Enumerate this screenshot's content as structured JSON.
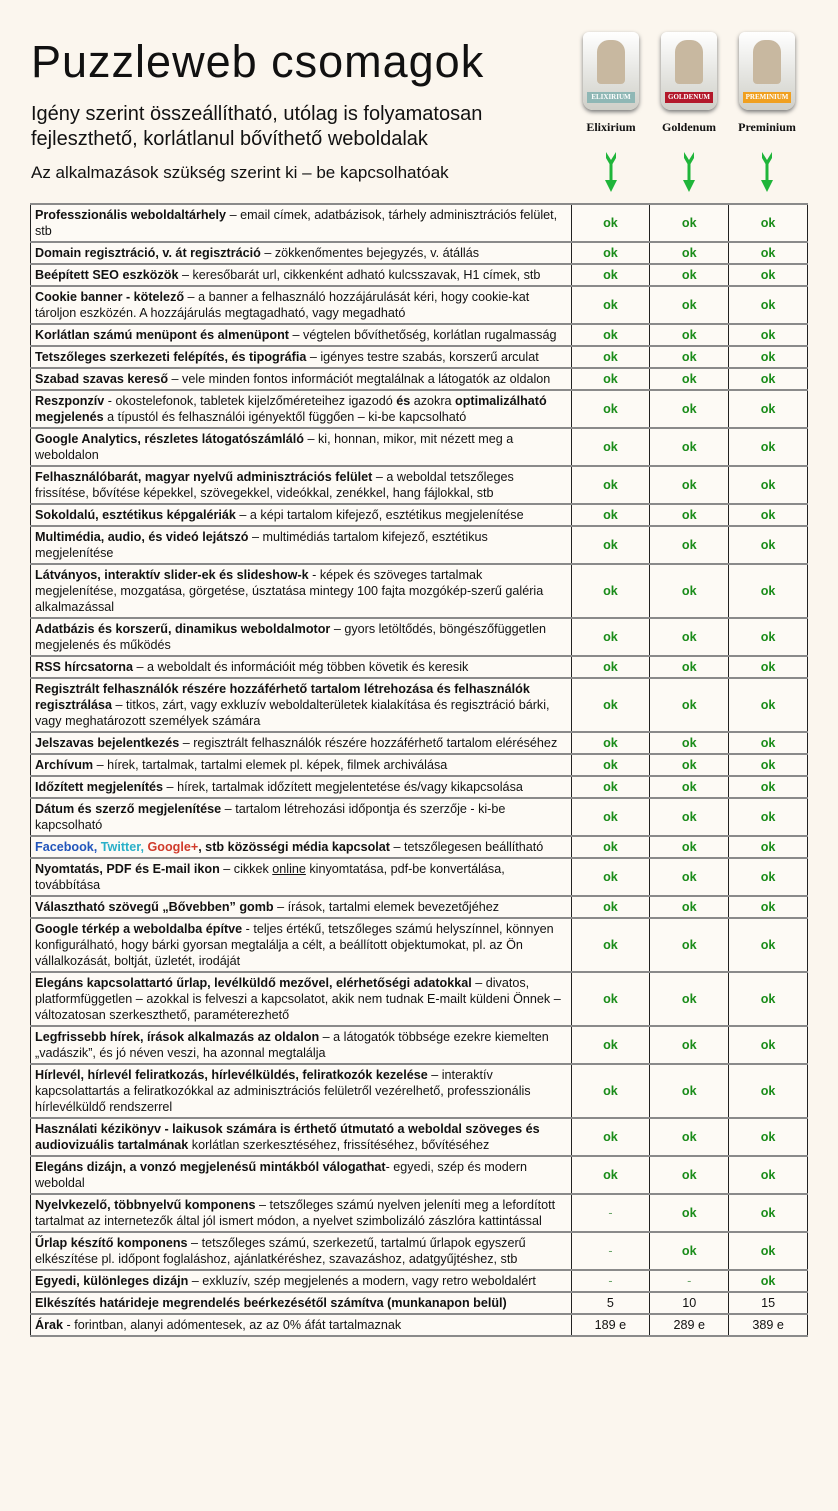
{
  "header": {
    "title": "Puzzleweb csomagok",
    "subtitle_line1": "Igény szerint összeállítható, utólag is folyamatosan",
    "subtitle_line2": "fejleszthető, korlátlanul bővíthető weboldalak",
    "note": "Az alkalmazások szükség szerint ki – be kapcsolhatóak"
  },
  "packages": [
    {
      "name": "Elixirium",
      "band": "ELIXIRIUM",
      "color": "#8fb7b5"
    },
    {
      "name": "Goldenum",
      "band": "GOLDENUM",
      "color": "#b3182a"
    },
    {
      "name": "Preminium",
      "band": "PREMINIUM",
      "color": "#f0a020"
    }
  ],
  "colors": {
    "ok": "#1a8c1a",
    "arrow": "#1fb53a",
    "background": "#fbf6ee"
  },
  "rows": [
    {
      "seg": [
        {
          "t": "Professzionális weboldaltárhely",
          "b": 1
        },
        {
          "t": " – email címek, adatbázisok, tárhely adminisztrációs felület, stb"
        }
      ],
      "v": [
        "ok",
        "ok",
        "ok"
      ]
    },
    {
      "seg": [
        {
          "t": "Domain regisztráció, v. át regisztráció",
          "b": 1
        },
        {
          "t": " – zökkenőmentes bejegyzés, v. átállás"
        }
      ],
      "v": [
        "ok",
        "ok",
        "ok"
      ]
    },
    {
      "seg": [
        {
          "t": "Beépített SEO eszközök",
          "b": 1
        },
        {
          "t": " – keresőbarát url, cikkenként adható kulcsszavak, H1 címek, stb"
        }
      ],
      "v": [
        "ok",
        "ok",
        "ok"
      ]
    },
    {
      "seg": [
        {
          "t": "Cookie banner - kötelező",
          "b": 1
        },
        {
          "t": " – a banner a felhasználó hozzájárulását kéri, hogy cookie-kat tároljon eszközén. A hozzájárulás megtagadható, vagy megadható"
        }
      ],
      "v": [
        "ok",
        "ok",
        "ok"
      ]
    },
    {
      "seg": [
        {
          "t": "Korlátlan számú menüpont és almenüpont",
          "b": 1
        },
        {
          "t": " – végtelen bővíthetőség, korlátlan rugalmasság"
        }
      ],
      "v": [
        "ok",
        "ok",
        "ok"
      ]
    },
    {
      "seg": [
        {
          "t": "Tetszőleges szerkezeti felépítés, és tipográfia",
          "b": 1
        },
        {
          "t": " – igényes testre szabás, korszerű arculat"
        }
      ],
      "v": [
        "ok",
        "ok",
        "ok"
      ]
    },
    {
      "seg": [
        {
          "t": "Szabad szavas kereső",
          "b": 1
        },
        {
          "t": " – vele minden fontos információt megtalálnak a látogatók az oldalon"
        }
      ],
      "v": [
        "ok",
        "ok",
        "ok"
      ]
    },
    {
      "seg": [
        {
          "t": "Reszponzív",
          "b": 1
        },
        {
          "t": " - okostelefonok, tabletek kijelzőméreteihez igazodó "
        },
        {
          "t": "és",
          "b": 1
        },
        {
          "t": " azokra "
        },
        {
          "t": "optimalizálható megjelenés",
          "b": 1
        },
        {
          "t": " a típustól és felhasználói igényektől függően – ki-be kapcsolható"
        }
      ],
      "v": [
        "ok",
        "ok",
        "ok"
      ]
    },
    {
      "seg": [
        {
          "t": "Google Analytics, részletes látogatószámláló",
          "b": 1
        },
        {
          "t": " – ki, honnan, mikor, mit nézett meg a weboldalon"
        }
      ],
      "v": [
        "ok",
        "ok",
        "ok"
      ]
    },
    {
      "seg": [
        {
          "t": "Felhasználóbarát, magyar nyelvű adminisztrációs felület",
          "b": 1
        },
        {
          "t": " – a weboldal tetszőleges frissítése, bővítése képekkel, szövegekkel, videókkal, zenékkel, hang fájlokkal, stb"
        }
      ],
      "v": [
        "ok",
        "ok",
        "ok"
      ]
    },
    {
      "seg": [
        {
          "t": "Sokoldalú, esztétikus képgalériák",
          "b": 1
        },
        {
          "t": " – a képi tartalom kifejező, esztétikus megjelenítése"
        }
      ],
      "v": [
        "ok",
        "ok",
        "ok"
      ]
    },
    {
      "seg": [
        {
          "t": "Multimédia, audio, és videó lejátszó",
          "b": 1
        },
        {
          "t": " – multimédiás tartalom kifejező, esztétikus megjelenítése"
        }
      ],
      "v": [
        "ok",
        "ok",
        "ok"
      ]
    },
    {
      "seg": [
        {
          "t": "Látványos, interaktív slider-ek és slideshow-k",
          "b": 1
        },
        {
          "t": " - képek és szöveges tartalmak megjelenítése, mozgatása, görgetése, úsztatása mintegy 100 fajta mozgókép-szerű galéria alkalmazással"
        }
      ],
      "v": [
        "ok",
        "ok",
        "ok"
      ]
    },
    {
      "seg": [
        {
          "t": "Adatbázis és korszerű, dinamikus weboldalmotor",
          "b": 1
        },
        {
          "t": " –  gyors letöltődés, böngészőfüggetlen megjelenés és működés"
        }
      ],
      "v": [
        "ok",
        "ok",
        "ok"
      ]
    },
    {
      "seg": [
        {
          "t": "RSS hírcsatorna",
          "b": 1
        },
        {
          "t": " – a weboldalt és információit még többen követik és keresik"
        }
      ],
      "v": [
        "ok",
        "ok",
        "ok"
      ]
    },
    {
      "seg": [
        {
          "t": "Regisztrált felhasználók részére hozzáférhető tartalom létrehozása és felhasználók regisztrálása",
          "b": 1
        },
        {
          "t": " – titkos, zárt, vagy exkluzív weboldalterületek kialakítása és regisztráció bárki, vagy meghatározott személyek számára"
        }
      ],
      "v": [
        "ok",
        "ok",
        "ok"
      ]
    },
    {
      "seg": [
        {
          "t": "Jelszavas bejelentkezés",
          "b": 1
        },
        {
          "t": " – regisztrált felhasználók részére hozzáférhető tartalom eléréséhez"
        }
      ],
      "v": [
        "ok",
        "ok",
        "ok"
      ]
    },
    {
      "seg": [
        {
          "t": "Archívum",
          "b": 1
        },
        {
          "t": " – hírek, tartalmak, tartalmi elemek pl. képek, filmek archiválása"
        }
      ],
      "v": [
        "ok",
        "ok",
        "ok"
      ]
    },
    {
      "seg": [
        {
          "t": "Időzített megjelenítés",
          "b": 1
        },
        {
          "t": " – hírek, tartalmak időzített megjelentetése és/vagy kikapcsolása"
        }
      ],
      "v": [
        "ok",
        "ok",
        "ok"
      ]
    },
    {
      "seg": [
        {
          "t": "Dátum és szerző megjelenítése",
          "b": 1
        },
        {
          "t": " – tartalom létrehozási időpontja és szerzője - ki-be kapcsolható"
        }
      ],
      "v": [
        "ok",
        "ok",
        "ok"
      ]
    },
    {
      "seg": [
        {
          "t": "Facebook",
          "b": 1,
          "c": "#2255bb"
        },
        {
          "t": ", ",
          "b": 1,
          "c": "#2255bb"
        },
        {
          "t": "Twitter",
          "b": 1,
          "c": "#2ab0c8"
        },
        {
          "t": ", ",
          "b": 1,
          "c": "#2ab0c8"
        },
        {
          "t": "Google+",
          "b": 1,
          "c": "#d03a2a"
        },
        {
          "t": ", stb közösségi média kapcsolat",
          "b": 1
        },
        {
          "t": " – tetszőlegesen beállítható"
        }
      ],
      "v": [
        "ok",
        "ok",
        "ok"
      ]
    },
    {
      "seg": [
        {
          "t": "Nyomtatás, PDF és E-mail ikon",
          "b": 1
        },
        {
          "t": " – cikkek "
        },
        {
          "t": "online",
          "u": 1
        },
        {
          "t": " kinyomtatása, pdf-be konvertálása, továbbítása"
        }
      ],
      "v": [
        "ok",
        "ok",
        "ok"
      ]
    },
    {
      "seg": [
        {
          "t": "Választható szövegű „Bővebben” gomb",
          "b": 1
        },
        {
          "t": " – írások, tartalmi elemek bevezetőjéhez"
        }
      ],
      "v": [
        "ok",
        "ok",
        "ok"
      ]
    },
    {
      "seg": [
        {
          "t": "Google térkép a weboldalba építve",
          "b": 1
        },
        {
          "t": " -  teljes értékű, tetszőleges számú helyszínnel, könnyen konfigurálható, hogy bárki gyorsan megtalálja a célt, a beállított objektumokat, pl. az Ön vállalkozását, boltját, üzletét, irodáját"
        }
      ],
      "v": [
        "ok",
        "ok",
        "ok"
      ]
    },
    {
      "seg": [
        {
          "t": "Elegáns kapcsolattartó űrlap, levélküldő mezővel, elérhetőségi adatokkal",
          "b": 1
        },
        {
          "t": " – divatos, platformfüggetlen – azokkal is felveszi a kapcsolatot, akik nem tudnak E-mailt küldeni Önnek – változatosan szerkeszthető, paraméterezhető"
        }
      ],
      "v": [
        "ok",
        "ok",
        "ok"
      ]
    },
    {
      "seg": [
        {
          "t": "Legfrissebb hírek, írások alkalmazás az oldalon",
          "b": 1
        },
        {
          "t": " – a látogatók többsége ezekre kiemelten „vadászik”, és jó néven veszi, ha azonnal megtalálja"
        }
      ],
      "v": [
        "ok",
        "ok",
        "ok"
      ]
    },
    {
      "seg": [
        {
          "t": "Hírlevél, hírlevél feliratkozás, hírlevélküldés, feliratkozók kezelése",
          "b": 1
        },
        {
          "t": " – interaktív kapcsolattartás a feliratkozókkal az adminisztrációs felületről vezérelhető, professzionális hírlevélküldő rendszerrel"
        }
      ],
      "v": [
        "ok",
        "ok",
        "ok"
      ]
    },
    {
      "seg": [
        {
          "t": "Használati kézikönyv  - laikusok számára is érthető útmutató a weboldal szöveges és audiovizuális tartalmának",
          "b": 1
        },
        {
          "t": " korlátlan szerkesztéséhez, frissítéséhez, bővítéséhez"
        }
      ],
      "v": [
        "ok",
        "ok",
        "ok"
      ]
    },
    {
      "seg": [
        {
          "t": "Elegáns dizájn, a vonzó megjelenésű mintákból válogathat",
          "b": 1
        },
        {
          "t": "- egyedi, szép és modern weboldal"
        }
      ],
      "v": [
        "ok",
        "ok",
        "ok"
      ]
    },
    {
      "seg": [
        {
          "t": "Nyelvkezelő, többnyelvű komponens",
          "b": 1
        },
        {
          "t": " – tetszőleges számú nyelven jeleníti meg a lefordított tartalmat az internetezők által jól ismert módon, a nyelvet szimbolizáló zászlóra kattintással"
        }
      ],
      "v": [
        "-",
        "ok",
        "ok"
      ]
    },
    {
      "seg": [
        {
          "t": "Űrlap készítő komponens",
          "b": 1
        },
        {
          "t": " – tetszőleges számú, szerkezetű, tartalmú űrlapok egyszerű elkészítése pl. időpont foglaláshoz, ajánlatkéréshez, szavazáshoz, adatgyűjtéshez, stb"
        }
      ],
      "v": [
        "-",
        "ok",
        "ok"
      ]
    },
    {
      "seg": [
        {
          "t": "Egyedi, különleges dizájn",
          "b": 1
        },
        {
          "t": " – exkluzív, szép megjelenés a modern, vagy retro weboldalért"
        }
      ],
      "v": [
        "-",
        "-",
        "ok"
      ]
    },
    {
      "seg": [
        {
          "t": "Elkészítés határideje megrendelés beérkezésétől számítva (munkanapon belül)",
          "b": 1
        }
      ],
      "v": [
        "5",
        "10",
        "15"
      ]
    },
    {
      "seg": [
        {
          "t": "Árak",
          "b": 1
        },
        {
          "t": " - forintban, alanyi adómentesek, az az 0% áfát tartalmaznak"
        }
      ],
      "v": [
        "189 e",
        "289 e",
        "389 e"
      ]
    }
  ]
}
